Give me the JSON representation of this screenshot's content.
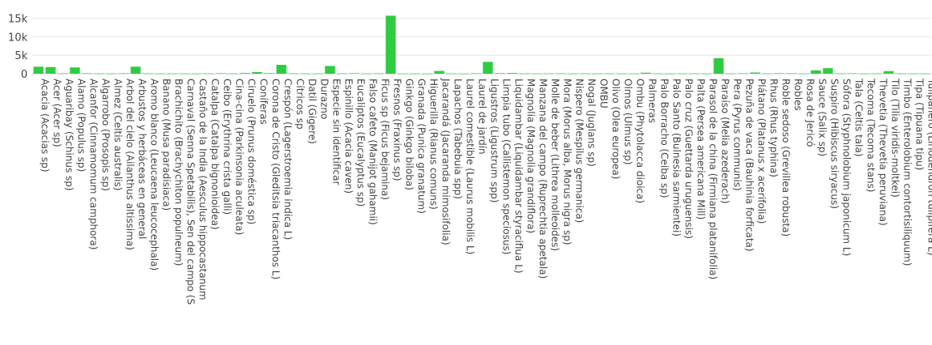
{
  "chart_data": {
    "type": "bar",
    "title": "",
    "xlabel": "",
    "ylabel": "",
    "ylim": [
      0,
      16000
    ],
    "yticks": [
      0,
      5000,
      10000,
      15000
    ],
    "ytick_labels": [
      "0",
      "5k",
      "10k",
      "15k"
    ],
    "grid": true,
    "legend": "none",
    "bar_color": "#2ecc40",
    "categories": [
      "Acacia (Acacias sp)",
      "Acer (Acer sp)",
      "Aguaribay (Schinus sp)",
      "Alamo (Populus sp)",
      "Alcanfor (Cinnamomum camphora)",
      "Algarrobo (Prosopis sp)",
      "Almez (Celtis australis)",
      "Arbol del cielo (Ailanthus altissima)",
      "Arbustos y herbáceas en general",
      "Aromo blanco (Leucaena leucocephala)",
      "Banano (Musa paradisiaca)",
      "Brachichito (Brachychiton populneum)",
      "Carnaval (Senna Spetabilis), Sen del campo (S",
      "Castaño de la India (Aesculus hippocastanum",
      "Catalpa (Catalpa bignonioidea)",
      "Ceibo (Erythrina crista galli)",
      "Cina-cina (Parkinsonia aculeata)",
      "Ciruelo (Prunus doméstica sp)",
      "Coníferas",
      "Corona de Cristo (Gleditsia triacanthos L)",
      "Crespón (Lagerstroemia indica L)",
      "Cítricos sp",
      "Datil (Gigere)",
      "Durazno",
      "Especie sin identificar",
      "Espinillo (Acacia caven)",
      "Eucaliptos (Eucalyptus sp)",
      "Falso cafeto (Manijot gahamii)",
      "Ficus sp (Ficus bejamina)",
      "Fresnos (Fraxinus sp)",
      "Ginkgo (Ginkgo biloba)",
      "Granada (Punica granatum)",
      "Higuerilla (Rianus comuns)",
      "Jacarandá (Jacaranda mimosifolia)",
      "Lapachos (Tabebuia spp)",
      "Laurel comestible (Laurus mobilis L)",
      "Laurel de jardín",
      "Ligustros (Ligustrum spp)",
      "Limpia tubo (Callistemon speciosus)",
      "Liquidambar (Liquidambar styraciflua L)",
      "Magnolia (Magnolia grandiflora)",
      "Manzana del campo (Ruprechtia apetala)",
      "Molle de beber (Lithrea molleoides)",
      "Mora (Morus alba, Morus nigra sp)",
      "Nispero (Mespilus germanica)",
      "Nogal (Juglans sp)",
      "OMBU",
      "Olivo (Olea europea)",
      "Olmos (Ulmus sp)",
      "Ombu (Phytolacca dioica)",
      "Palmeras",
      "Palo Borracho (Ceiba sp)",
      "Palo Santo (Bulnesia sarmientei)",
      "Palo cruz (Guettarda uruguensis)",
      "Palta (Persea americana Mill)",
      "Parasol de la china (Firmiana platanifolia)",
      "Paraíso (Melia azederach)",
      "Pera (Pyrus communis)",
      "Pezuña de vaca (Bauhinia forficata)",
      "Plátano (Platanus x acerifolia)",
      "Rhus (Rhus typhina)",
      "Roble sedoso (Grevillea robusta)",
      "Robles",
      "Rosa de Jericó",
      "Sauce (Salix sp)",
      "Suspiro (Hibiscus siryacus)",
      "Sófora (Styphnolobium japonicum L)",
      "Tala (Celtis tala)",
      "Tecoma (Tecoma stans)",
      "Thevetia (Thevetia peruviana)",
      "Tilo (Tilia viridis-moltkei)",
      "Timbo (Enterolobium contortisiliquum)",
      "Tipa (Tipuana tipu)",
      "Tulipanero (Liriodendron tulipifera L)"
    ],
    "values": [
      1900,
      1800,
      90,
      1700,
      120,
      40,
      60,
      110,
      1900,
      70,
      20,
      50,
      30,
      20,
      60,
      120,
      60,
      180,
      450,
      150,
      2400,
      80,
      20,
      30,
      2100,
      60,
      120,
      30,
      90,
      15700,
      40,
      20,
      30,
      750,
      50,
      20,
      90,
      3200,
      150,
      200,
      40,
      30,
      60,
      90,
      20,
      40,
      40,
      60,
      60,
      30,
      270,
      40,
      20,
      30,
      60,
      30,
      4200,
      60,
      110,
      320,
      40,
      130,
      90,
      60,
      900,
      1500,
      60,
      90,
      30,
      60,
      700,
      60,
      40,
      30
    ]
  }
}
